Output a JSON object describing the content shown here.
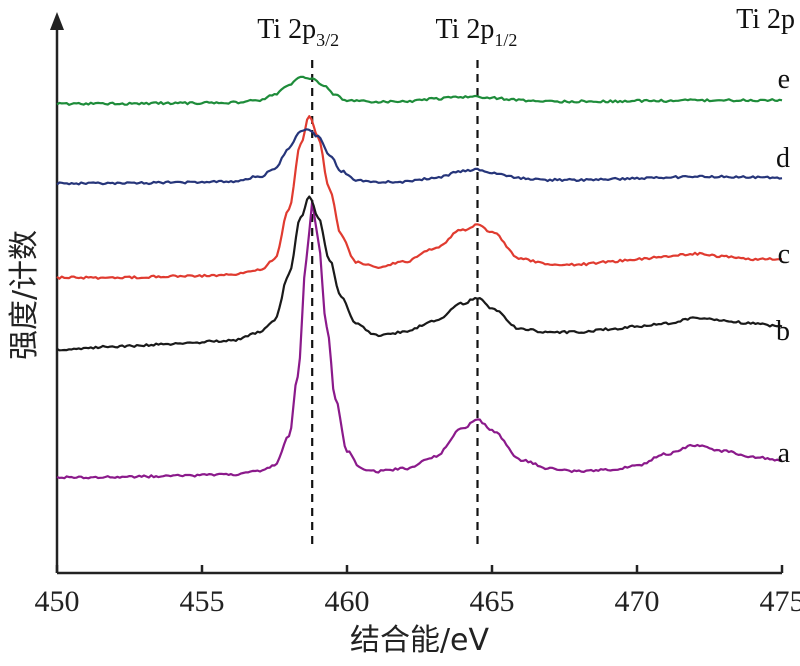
{
  "chart_data": {
    "type": "line",
    "xlabel": "结合能/eV",
    "ylabel": "强度/计数",
    "xlim": [
      450,
      475
    ],
    "xticks": [
      450,
      455,
      460,
      465,
      470,
      475
    ],
    "corner_label": "Ti 2p",
    "peak_markers": [
      {
        "x": 458.8,
        "label": "Ti 2p",
        "subscript": "3/2"
      },
      {
        "x": 464.5,
        "label": "Ti 2p",
        "subscript": "1/2"
      }
    ],
    "legend": "none (series labelled at right end of each curve)",
    "series": [
      {
        "name": "a",
        "color": "#8b1a8b",
        "x": [
          450,
          452,
          454,
          456,
          457,
          457.5,
          458,
          458.3,
          458.6,
          458.8,
          459,
          459.3,
          459.6,
          460,
          460.5,
          461,
          462,
          463,
          464,
          464.5,
          465,
          466,
          467,
          468,
          469,
          470,
          471,
          472,
          473,
          474,
          475
        ],
        "y": [
          0.03,
          0.03,
          0.035,
          0.04,
          0.05,
          0.07,
          0.17,
          0.38,
          0.78,
          0.98,
          0.85,
          0.55,
          0.3,
          0.12,
          0.06,
          0.05,
          0.06,
          0.1,
          0.2,
          0.23,
          0.19,
          0.09,
          0.06,
          0.05,
          0.055,
          0.07,
          0.11,
          0.14,
          0.12,
          0.1,
          0.09
        ]
      },
      {
        "name": "b",
        "color": "#1a1a1a",
        "x": [
          450,
          452,
          454,
          456,
          457,
          457.5,
          458,
          458.4,
          458.7,
          459,
          459.4,
          459.8,
          460.3,
          461,
          462,
          463,
          464,
          464.5,
          465,
          466,
          467,
          468,
          469,
          470,
          471,
          472,
          473,
          474,
          475
        ],
        "y": [
          0.04,
          0.05,
          0.06,
          0.07,
          0.1,
          0.14,
          0.3,
          0.5,
          0.57,
          0.5,
          0.35,
          0.22,
          0.13,
          0.09,
          0.1,
          0.14,
          0.2,
          0.22,
          0.18,
          0.11,
          0.1,
          0.1,
          0.11,
          0.12,
          0.13,
          0.15,
          0.14,
          0.13,
          0.12
        ]
      },
      {
        "name": "c",
        "color": "#e03b30",
        "x": [
          450,
          452,
          454,
          456,
          457,
          457.5,
          458,
          458.4,
          458.7,
          459,
          459.4,
          459.8,
          460.3,
          461,
          462,
          463,
          464,
          464.5,
          465,
          466,
          467,
          468,
          469,
          470,
          471,
          472,
          473,
          474,
          475
        ],
        "y": [
          0.02,
          0.02,
          0.025,
          0.03,
          0.05,
          0.09,
          0.28,
          0.52,
          0.63,
          0.55,
          0.35,
          0.18,
          0.08,
          0.06,
          0.08,
          0.13,
          0.2,
          0.22,
          0.19,
          0.09,
          0.07,
          0.07,
          0.08,
          0.09,
          0.1,
          0.11,
          0.1,
          0.09,
          0.09
        ]
      },
      {
        "name": "d",
        "color": "#26357a",
        "x": [
          450,
          452,
          454,
          456,
          457,
          457.5,
          458,
          458.4,
          458.6,
          459,
          459.4,
          459.8,
          460.3,
          461,
          462,
          463,
          464,
          464.5,
          465,
          466,
          467,
          468,
          469,
          470,
          471,
          472,
          473,
          474,
          475
        ],
        "y": [
          0.02,
          0.02,
          0.025,
          0.03,
          0.06,
          0.1,
          0.22,
          0.32,
          0.33,
          0.29,
          0.18,
          0.09,
          0.04,
          0.03,
          0.03,
          0.05,
          0.09,
          0.1,
          0.08,
          0.05,
          0.04,
          0.04,
          0.045,
          0.05,
          0.055,
          0.06,
          0.06,
          0.055,
          0.05
        ]
      },
      {
        "name": "e",
        "color": "#1e8c3a",
        "x": [
          450,
          452,
          454,
          456,
          457,
          457.5,
          458,
          458.4,
          458.8,
          459.2,
          459.6,
          460,
          460.5,
          461,
          462,
          463,
          464,
          464.5,
          465,
          466,
          467,
          468,
          469,
          470,
          471,
          472,
          473,
          474,
          475
        ],
        "y": [
          0.02,
          0.02,
          0.025,
          0.03,
          0.05,
          0.1,
          0.18,
          0.25,
          0.24,
          0.17,
          0.09,
          0.05,
          0.04,
          0.035,
          0.04,
          0.06,
          0.08,
          0.08,
          0.07,
          0.05,
          0.04,
          0.04,
          0.04,
          0.045,
          0.045,
          0.05,
          0.05,
          0.05,
          0.05
        ]
      }
    ]
  }
}
